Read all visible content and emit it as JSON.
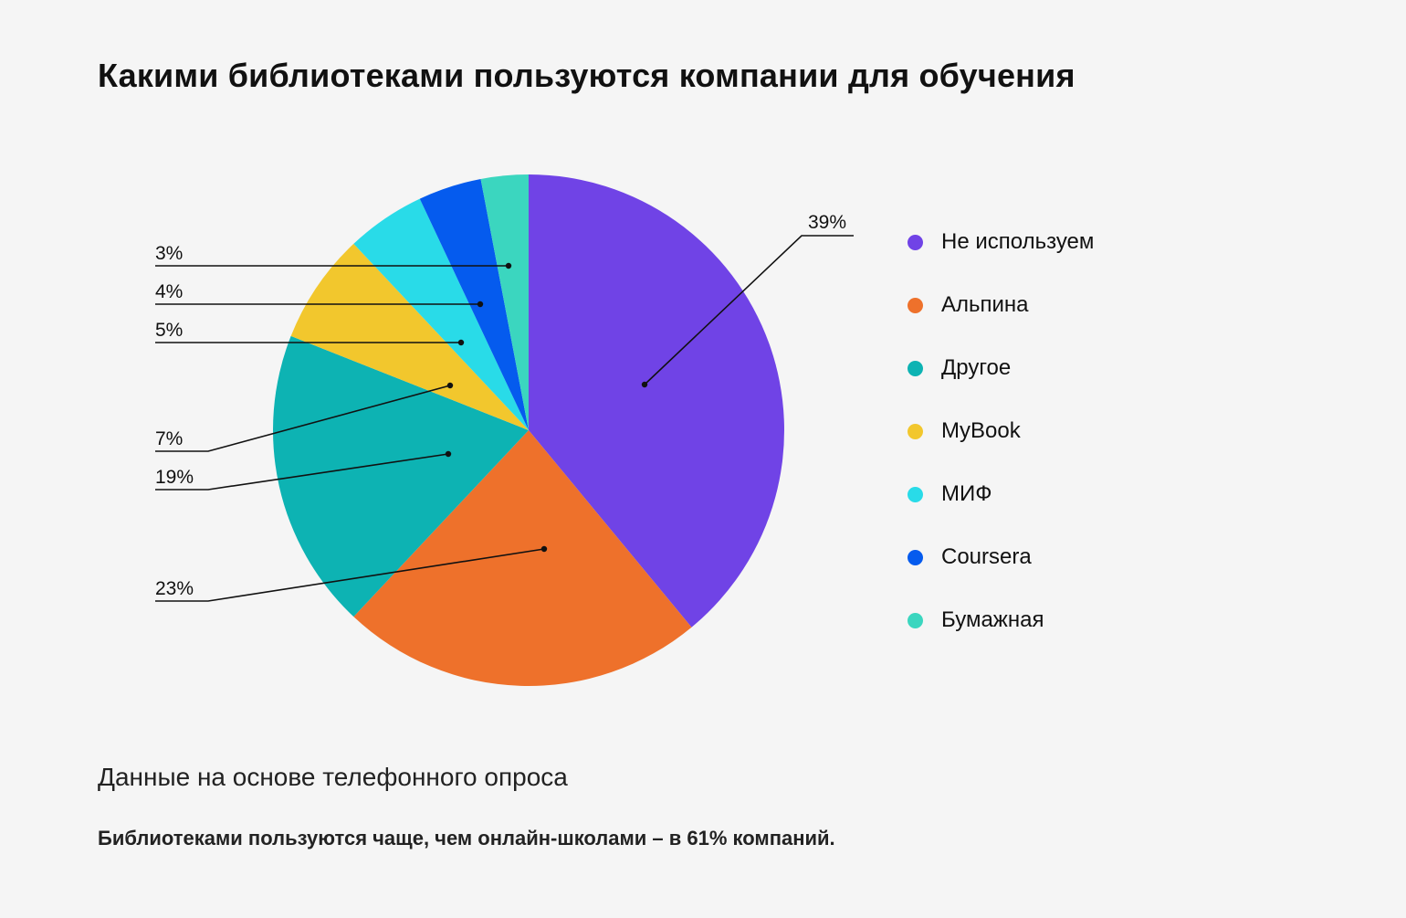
{
  "title": "Какими библиотеками пользуются компании для обучения",
  "note": "Данные на основе телефонного опроса",
  "summary": "Библиотеками  пользуются чаще, чем онлайн-школами  – в 61% компаний.",
  "chart_data": {
    "type": "pie",
    "title": "Какими библиотеками пользуются компании для обучения",
    "categories": [
      "Не используем",
      "Альпина",
      "Другое",
      "MyBook",
      "МИФ",
      "Coursera",
      "Бумажная"
    ],
    "values": [
      39,
      23,
      19,
      7,
      5,
      4,
      3
    ],
    "labels": [
      "39%",
      "23%",
      "19%",
      "7%",
      "5%",
      "4%",
      "3%"
    ],
    "colors": [
      "#7043e6",
      "#ee712b",
      "#0db3b3",
      "#f2c72d",
      "#29dbe8",
      "#055bee",
      "#3bd6bf"
    ],
    "legend_position": "right"
  }
}
